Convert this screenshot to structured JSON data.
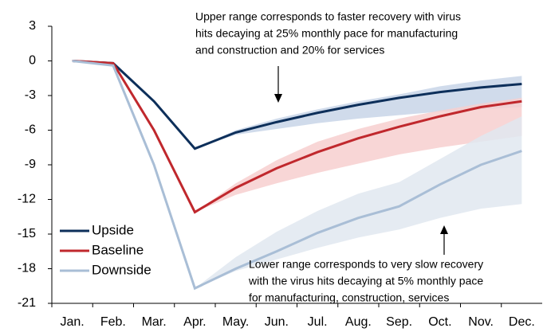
{
  "chart_data": {
    "type": "line",
    "categories": [
      "Jan.",
      "Feb.",
      "Mar.",
      "Apr.",
      "May.",
      "Jun.",
      "Jul.",
      "Aug.",
      "Sep.",
      "Oct.",
      "Nov.",
      "Dec."
    ],
    "series": [
      {
        "name": "Upside",
        "color": "#0d2f5a",
        "band_color": "#c8d5e8",
        "values": [
          0,
          -0.2,
          -3.5,
          -7.6,
          -6.2,
          -5.3,
          -4.5,
          -3.8,
          -3.2,
          -2.7,
          -2.3,
          -2.0
        ],
        "band_upper": [
          null,
          null,
          null,
          -7.6,
          -6.0,
          -5.0,
          -4.2,
          -3.5,
          -2.9,
          -2.2,
          -1.7,
          -1.3
        ],
        "band_lower": [
          null,
          null,
          null,
          -7.6,
          -6.4,
          -5.9,
          -5.4,
          -5.0,
          -4.7,
          -4.4,
          -4.2,
          -4.0
        ]
      },
      {
        "name": "Baseline",
        "color": "#c0282d",
        "band_color": "#f7cfcf",
        "values": [
          0,
          -0.2,
          -6.0,
          -13.1,
          -11.0,
          -9.3,
          -7.9,
          -6.7,
          -5.7,
          -4.8,
          -4.0,
          -3.5
        ],
        "band_upper": [
          null,
          null,
          null,
          -13.1,
          -10.6,
          -8.6,
          -7.0,
          -5.9,
          -5.0,
          -4.3,
          -3.7,
          -3.2
        ],
        "band_lower": [
          null,
          null,
          null,
          -13.1,
          -11.6,
          -10.6,
          -9.7,
          -8.9,
          -8.1,
          -7.5,
          -7.0,
          -6.5
        ]
      },
      {
        "name": "Downside",
        "color": "#a9bed6",
        "band_color": "#e0e7f0",
        "values": [
          0,
          -0.4,
          -9.0,
          -19.7,
          -18.0,
          -16.5,
          -14.9,
          -13.6,
          -12.6,
          -10.7,
          -9.0,
          -7.8
        ],
        "band_upper": [
          null,
          null,
          null,
          -19.7,
          -17.0,
          -14.8,
          -13.0,
          -11.5,
          -10.5,
          -8.5,
          -6.5,
          -4.8
        ],
        "band_lower": [
          null,
          null,
          null,
          -19.7,
          -18.2,
          -17.2,
          -16.2,
          -15.3,
          -14.6,
          -13.6,
          -12.8,
          -12.4
        ]
      }
    ],
    "ylim": [
      -21,
      3
    ],
    "yticks": [
      3,
      0,
      -3,
      -6,
      -9,
      -12,
      -15,
      -18,
      -21
    ],
    "legend": "lower left",
    "annotations": [
      {
        "lines": [
          "Upper range corresponds to faster recovery with virus",
          "hits decaying at 25% monthly pace for manufacturing",
          "and construction and 20% for services"
        ]
      },
      {
        "lines": [
          "Lower range corresponds to very slow recovery",
          "with the virus hits decaying at 5% monthly pace",
          "for manufacturing, construction, services"
        ]
      }
    ]
  }
}
